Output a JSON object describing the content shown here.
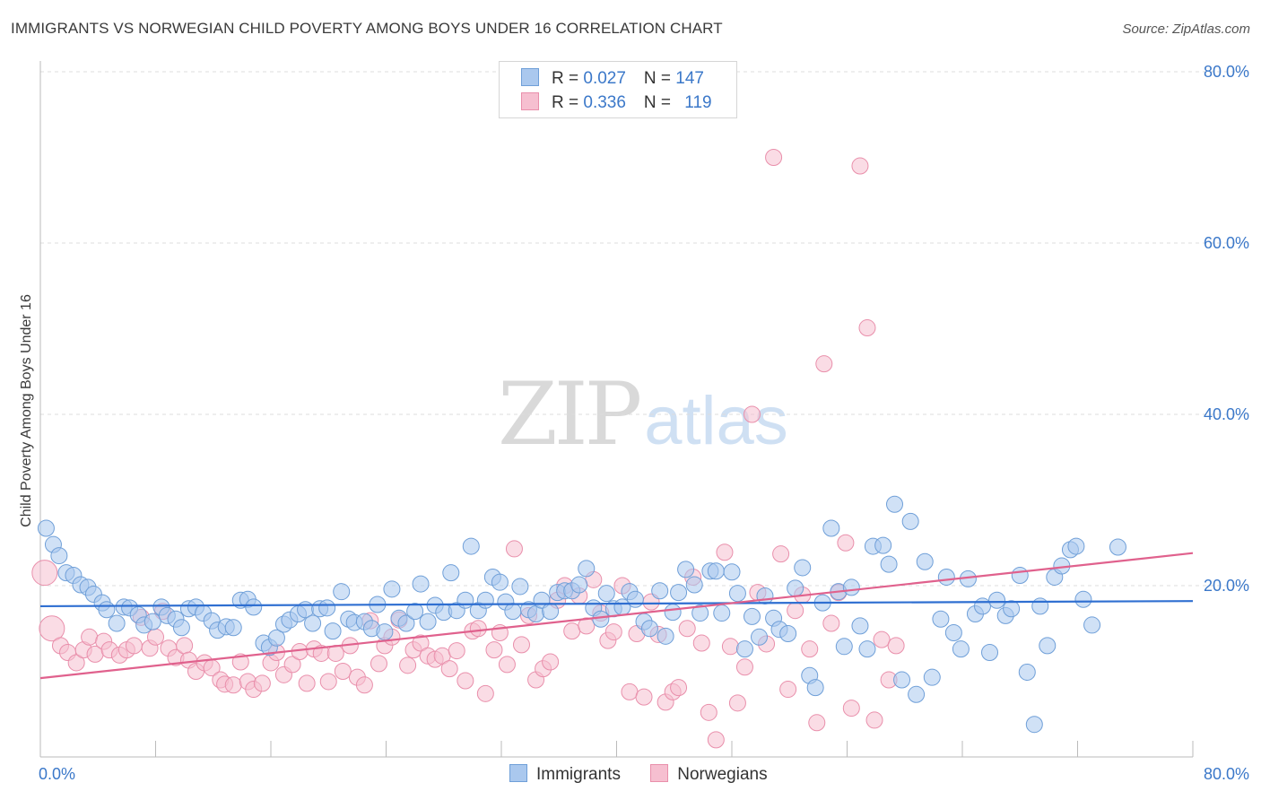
{
  "title": "IMMIGRANTS VS NORWEGIAN CHILD POVERTY AMONG BOYS UNDER 16 CORRELATION CHART",
  "source": "Source: ZipAtlas.com",
  "watermark": {
    "a": "ZIP",
    "b": "atlas"
  },
  "legend": {
    "rows": [
      {
        "r_label": "R = ",
        "r_value": "0.027",
        "n_label": "N = ",
        "n_value": "147"
      },
      {
        "r_label": "R = ",
        "r_value": "0.336",
        "n_label": "N = ",
        "n_value": "119"
      }
    ]
  },
  "bottom_legend": [
    "Immigrants",
    "Norwegians"
  ],
  "colors": {
    "blue_fill": "#aac8ee",
    "blue_stroke": "#6f9fd8",
    "blue_line": "#2f6fd1",
    "pink_fill": "#f6bfd0",
    "pink_stroke": "#e98fab",
    "pink_line": "#e0618d",
    "tick": "#3b78c9",
    "grid": "#dddddd"
  },
  "chart_data": {
    "type": "scatter",
    "title": "IMMIGRANTS VS NORWEGIAN CHILD POVERTY AMONG BOYS UNDER 16 CORRELATION CHART",
    "xlabel": "",
    "ylabel": "Child Poverty Among Boys Under 16",
    "xlim": [
      0,
      80
    ],
    "ylim": [
      0,
      80
    ],
    "x_tick_labels": [
      "0.0%",
      "80.0%"
    ],
    "y_tick_labels": [
      "20.0%",
      "40.0%",
      "60.0%",
      "80.0%"
    ],
    "y_ticks": [
      20,
      40,
      60,
      80
    ],
    "grid": "horizontal dashed",
    "legend": "top-center",
    "series": [
      {
        "name": "Immigrants",
        "R": 0.027,
        "N": 147,
        "trend": [
          [
            0,
            17.6
          ],
          [
            80,
            18.2
          ]
        ],
        "points": [
          [
            0.4,
            26.7
          ],
          [
            0.9,
            24.8
          ],
          [
            1.3,
            23.5
          ],
          [
            1.8,
            21.5
          ],
          [
            2.3,
            21.2
          ],
          [
            2.8,
            20.1
          ],
          [
            3.3,
            19.8
          ],
          [
            3.7,
            19.0
          ],
          [
            4.3,
            18.0
          ],
          [
            4.6,
            17.2
          ],
          [
            5.3,
            15.6
          ],
          [
            5.8,
            17.5
          ],
          [
            6.2,
            17.4
          ],
          [
            6.8,
            16.6
          ],
          [
            7.2,
            15.4
          ],
          [
            7.8,
            15.8
          ],
          [
            8.4,
            17.5
          ],
          [
            8.8,
            16.5
          ],
          [
            9.4,
            16.1
          ],
          [
            9.8,
            15.1
          ],
          [
            10.3,
            17.3
          ],
          [
            10.8,
            17.5
          ],
          [
            11.3,
            16.8
          ],
          [
            11.9,
            15.9
          ],
          [
            12.3,
            14.8
          ],
          [
            12.9,
            15.2
          ],
          [
            13.4,
            15.1
          ],
          [
            13.9,
            18.3
          ],
          [
            14.4,
            18.4
          ],
          [
            14.8,
            17.5
          ],
          [
            15.5,
            13.3
          ],
          [
            15.9,
            12.8
          ],
          [
            16.4,
            13.9
          ],
          [
            16.9,
            15.5
          ],
          [
            17.3,
            16.0
          ],
          [
            17.9,
            16.7
          ],
          [
            18.4,
            17.2
          ],
          [
            18.9,
            15.6
          ],
          [
            19.4,
            17.3
          ],
          [
            19.9,
            17.4
          ],
          [
            20.3,
            14.7
          ],
          [
            20.9,
            19.3
          ],
          [
            21.4,
            16.1
          ],
          [
            21.8,
            15.7
          ],
          [
            22.5,
            15.8
          ],
          [
            23.0,
            15.0
          ],
          [
            23.4,
            17.8
          ],
          [
            23.9,
            14.6
          ],
          [
            24.4,
            19.6
          ],
          [
            24.9,
            16.2
          ],
          [
            25.4,
            15.6
          ],
          [
            26.0,
            17.0
          ],
          [
            26.4,
            20.2
          ],
          [
            26.9,
            15.8
          ],
          [
            27.4,
            17.7
          ],
          [
            28.0,
            16.9
          ],
          [
            28.5,
            21.5
          ],
          [
            28.9,
            17.1
          ],
          [
            29.5,
            18.3
          ],
          [
            29.9,
            24.6
          ],
          [
            30.4,
            17.1
          ],
          [
            30.9,
            18.3
          ],
          [
            31.4,
            21.0
          ],
          [
            31.9,
            20.4
          ],
          [
            32.3,
            18.1
          ],
          [
            32.8,
            17.0
          ],
          [
            33.3,
            19.9
          ],
          [
            33.9,
            17.2
          ],
          [
            34.4,
            16.7
          ],
          [
            34.8,
            18.3
          ],
          [
            35.4,
            17.0
          ],
          [
            35.9,
            19.2
          ],
          [
            36.4,
            19.4
          ],
          [
            36.9,
            19.4
          ],
          [
            37.4,
            20.1
          ],
          [
            37.9,
            22.0
          ],
          [
            38.4,
            17.4
          ],
          [
            38.9,
            16.1
          ],
          [
            39.3,
            19.1
          ],
          [
            39.8,
            17.3
          ],
          [
            40.4,
            17.5
          ],
          [
            40.9,
            19.3
          ],
          [
            41.3,
            18.4
          ],
          [
            41.9,
            15.8
          ],
          [
            42.3,
            15.0
          ],
          [
            43.0,
            19.4
          ],
          [
            43.4,
            14.1
          ],
          [
            43.9,
            16.9
          ],
          [
            44.3,
            19.2
          ],
          [
            44.8,
            21.9
          ],
          [
            45.4,
            20.1
          ],
          [
            45.8,
            16.8
          ],
          [
            46.5,
            21.7
          ],
          [
            46.9,
            21.7
          ],
          [
            47.3,
            16.8
          ],
          [
            48.0,
            21.6
          ],
          [
            48.4,
            19.1
          ],
          [
            48.9,
            12.6
          ],
          [
            49.4,
            16.4
          ],
          [
            49.9,
            14.0
          ],
          [
            50.3,
            18.8
          ],
          [
            50.9,
            16.2
          ],
          [
            51.3,
            14.9
          ],
          [
            51.9,
            14.4
          ],
          [
            52.4,
            19.7
          ],
          [
            52.9,
            22.1
          ],
          [
            53.4,
            9.5
          ],
          [
            53.8,
            8.1
          ],
          [
            54.3,
            18.0
          ],
          [
            54.9,
            26.7
          ],
          [
            55.4,
            19.3
          ],
          [
            55.8,
            12.9
          ],
          [
            56.3,
            19.8
          ],
          [
            56.9,
            15.3
          ],
          [
            57.4,
            12.6
          ],
          [
            57.8,
            24.6
          ],
          [
            58.5,
            24.7
          ],
          [
            58.9,
            22.5
          ],
          [
            59.3,
            29.5
          ],
          [
            59.8,
            9.0
          ],
          [
            60.4,
            27.5
          ],
          [
            60.8,
            7.3
          ],
          [
            61.4,
            22.8
          ],
          [
            61.9,
            9.3
          ],
          [
            62.5,
            16.1
          ],
          [
            62.9,
            21.0
          ],
          [
            63.4,
            14.5
          ],
          [
            63.9,
            12.6
          ],
          [
            64.4,
            20.8
          ],
          [
            64.9,
            16.7
          ],
          [
            65.4,
            17.6
          ],
          [
            65.9,
            12.2
          ],
          [
            66.4,
            18.3
          ],
          [
            67.0,
            16.5
          ],
          [
            67.4,
            17.3
          ],
          [
            68.0,
            21.2
          ],
          [
            68.5,
            9.9
          ],
          [
            69.0,
            3.8
          ],
          [
            69.4,
            17.6
          ],
          [
            69.9,
            13.0
          ],
          [
            70.4,
            21.0
          ],
          [
            70.9,
            22.3
          ],
          [
            71.5,
            24.2
          ],
          [
            71.9,
            24.6
          ],
          [
            72.4,
            18.4
          ],
          [
            73.0,
            15.4
          ],
          [
            74.8,
            24.5
          ]
        ]
      },
      {
        "name": "Norwegians",
        "R": 0.336,
        "N": 119,
        "trend": [
          [
            0,
            9.2
          ],
          [
            80,
            23.8
          ]
        ],
        "points": [
          [
            0.3,
            21.5
          ],
          [
            0.8,
            15.0
          ],
          [
            1.4,
            13.0
          ],
          [
            1.9,
            12.2
          ],
          [
            2.5,
            11.0
          ],
          [
            3.0,
            12.5
          ],
          [
            3.4,
            14.0
          ],
          [
            3.8,
            12.0
          ],
          [
            4.4,
            13.5
          ],
          [
            4.8,
            12.5
          ],
          [
            5.5,
            11.9
          ],
          [
            6.0,
            12.5
          ],
          [
            6.5,
            13.0
          ],
          [
            7.0,
            16.3
          ],
          [
            7.6,
            12.7
          ],
          [
            8.0,
            14.0
          ],
          [
            8.5,
            17.0
          ],
          [
            8.9,
            12.7
          ],
          [
            9.4,
            11.6
          ],
          [
            10.0,
            13.0
          ],
          [
            10.3,
            11.3
          ],
          [
            10.8,
            10.0
          ],
          [
            11.4,
            11.0
          ],
          [
            11.9,
            10.4
          ],
          [
            12.5,
            9.0
          ],
          [
            12.8,
            8.5
          ],
          [
            13.4,
            8.4
          ],
          [
            13.9,
            11.1
          ],
          [
            14.4,
            8.8
          ],
          [
            14.8,
            7.9
          ],
          [
            15.4,
            8.6
          ],
          [
            16.0,
            11.0
          ],
          [
            16.4,
            12.2
          ],
          [
            16.9,
            9.6
          ],
          [
            17.5,
            10.8
          ],
          [
            18.0,
            12.3
          ],
          [
            18.5,
            8.6
          ],
          [
            19.0,
            12.6
          ],
          [
            19.5,
            12.1
          ],
          [
            20.0,
            8.8
          ],
          [
            20.5,
            12.1
          ],
          [
            21.0,
            10.0
          ],
          [
            21.5,
            13.0
          ],
          [
            22.0,
            9.3
          ],
          [
            22.5,
            8.4
          ],
          [
            22.9,
            15.9
          ],
          [
            23.5,
            10.9
          ],
          [
            23.9,
            13.0
          ],
          [
            24.4,
            14.0
          ],
          [
            24.9,
            16.0
          ],
          [
            25.5,
            10.7
          ],
          [
            25.9,
            12.5
          ],
          [
            26.4,
            13.3
          ],
          [
            26.9,
            11.8
          ],
          [
            27.4,
            11.4
          ],
          [
            27.9,
            11.8
          ],
          [
            28.4,
            10.3
          ],
          [
            28.9,
            12.4
          ],
          [
            29.5,
            8.9
          ],
          [
            30.0,
            14.7
          ],
          [
            30.4,
            15.0
          ],
          [
            30.9,
            7.4
          ],
          [
            31.5,
            12.5
          ],
          [
            31.9,
            14.5
          ],
          [
            32.4,
            10.8
          ],
          [
            32.9,
            24.3
          ],
          [
            33.4,
            13.1
          ],
          [
            33.9,
            16.5
          ],
          [
            34.4,
            9.0
          ],
          [
            34.9,
            10.3
          ],
          [
            35.4,
            11.1
          ],
          [
            35.9,
            18.3
          ],
          [
            36.4,
            20.0
          ],
          [
            36.9,
            14.7
          ],
          [
            37.4,
            18.8
          ],
          [
            37.9,
            15.3
          ],
          [
            38.4,
            20.7
          ],
          [
            38.9,
            16.8
          ],
          [
            39.4,
            13.6
          ],
          [
            39.8,
            14.6
          ],
          [
            40.4,
            20.0
          ],
          [
            40.9,
            7.6
          ],
          [
            41.4,
            14.4
          ],
          [
            41.9,
            7.0
          ],
          [
            42.4,
            18.1
          ],
          [
            42.9,
            14.3
          ],
          [
            43.4,
            6.4
          ],
          [
            43.9,
            7.6
          ],
          [
            44.3,
            8.1
          ],
          [
            44.9,
            15.0
          ],
          [
            45.3,
            21.0
          ],
          [
            45.9,
            13.3
          ],
          [
            46.4,
            5.2
          ],
          [
            46.9,
            2.0
          ],
          [
            47.5,
            23.9
          ],
          [
            47.9,
            12.9
          ],
          [
            48.4,
            6.3
          ],
          [
            48.9,
            10.5
          ],
          [
            49.4,
            40.0
          ],
          [
            49.8,
            19.2
          ],
          [
            50.4,
            13.2
          ],
          [
            50.9,
            70.0
          ],
          [
            51.4,
            23.7
          ],
          [
            51.9,
            7.9
          ],
          [
            52.4,
            17.1
          ],
          [
            52.9,
            18.9
          ],
          [
            53.4,
            12.6
          ],
          [
            53.9,
            4.0
          ],
          [
            54.4,
            45.9
          ],
          [
            54.9,
            15.6
          ],
          [
            55.4,
            19.2
          ],
          [
            55.9,
            25.0
          ],
          [
            56.3,
            5.7
          ],
          [
            56.9,
            69.0
          ],
          [
            57.4,
            50.1
          ],
          [
            57.9,
            4.3
          ],
          [
            58.4,
            13.7
          ],
          [
            58.9,
            9.0
          ],
          [
            59.4,
            13.0
          ]
        ]
      }
    ]
  }
}
